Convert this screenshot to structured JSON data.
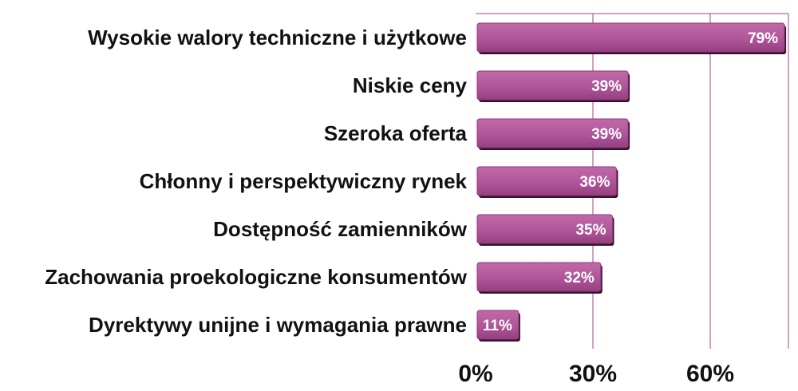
{
  "chart_data": {
    "type": "bar",
    "orientation": "horizontal",
    "categories": [
      "Wysokie walory techniczne i użytkowe",
      "Niskie ceny",
      "Szeroka oferta",
      "Chłonny i perspektywiczny rynek",
      "Dostępność zamienników ",
      "Zachowania proekologiczne konsumentów",
      "Dyrektywy unijne i wymagania prawne"
    ],
    "values": [
      79,
      39,
      39,
      36,
      35,
      32,
      11
    ],
    "value_labels": [
      "79%",
      "39%",
      "39%",
      "36%",
      "35%",
      "32%",
      "11%"
    ],
    "xlim": [
      0,
      80
    ],
    "xticks": [
      0,
      30,
      60
    ],
    "xtick_labels": [
      "0%",
      "30%",
      "60%"
    ],
    "grid": "vertical",
    "bar_color": "#b5569a",
    "bar_edge_color": "#3a1030",
    "grid_color": "#a0468a",
    "title": "",
    "xlabel": "",
    "ylabel": ""
  }
}
